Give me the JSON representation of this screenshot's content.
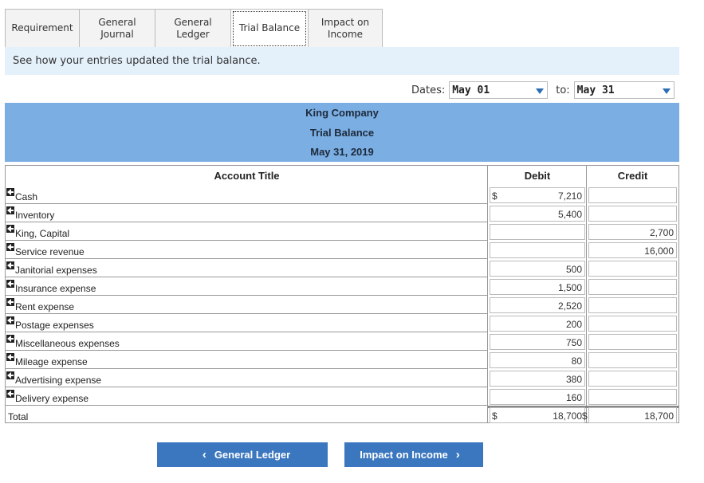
{
  "tabs": [
    {
      "label": "Requirement"
    },
    {
      "label": "General\nJournal"
    },
    {
      "label": "General\nLedger"
    },
    {
      "label": "Trial Balance"
    },
    {
      "label": "Impact on\nIncome"
    }
  ],
  "instruction": "See how your entries updated the trial balance.",
  "dates": {
    "label": "Dates:",
    "from": "May 01",
    "to_label": "to:",
    "to": "May 31"
  },
  "header": {
    "company": "King Company",
    "report": "Trial Balance",
    "date": "May 31, 2019"
  },
  "table": {
    "col_title": "Account Title",
    "col_debit": "Debit",
    "col_credit": "Credit",
    "rows": [
      {
        "account": "Cash",
        "debit": "7,210",
        "credit": "",
        "debit_dollar": "$"
      },
      {
        "account": "Inventory",
        "debit": "5,400",
        "credit": ""
      },
      {
        "account": "King, Capital",
        "debit": "",
        "credit": "2,700"
      },
      {
        "account": "Service revenue",
        "debit": "",
        "credit": "16,000"
      },
      {
        "account": "Janitorial expenses",
        "debit": "500",
        "credit": ""
      },
      {
        "account": "Insurance expense",
        "debit": "1,500",
        "credit": ""
      },
      {
        "account": "Rent expense",
        "debit": "2,520",
        "credit": ""
      },
      {
        "account": "Postage expenses",
        "debit": "200",
        "credit": ""
      },
      {
        "account": "Miscellaneous expenses",
        "debit": "750",
        "credit": ""
      },
      {
        "account": "Mileage expense",
        "debit": "80",
        "credit": ""
      },
      {
        "account": "Advertising expense",
        "debit": "380",
        "credit": ""
      },
      {
        "account": "Delivery expense",
        "debit": "160",
        "credit": ""
      }
    ],
    "total": {
      "label": "Total",
      "debit_dollar": "$",
      "debit": "18,700",
      "credit_dollar": "$",
      "credit": "18,700"
    }
  },
  "buttons": {
    "prev_label": "General Ledger",
    "next_label": "Impact on Income",
    "prev_icon": "chevron-left-icon",
    "next_icon": "chevron-right-icon"
  }
}
